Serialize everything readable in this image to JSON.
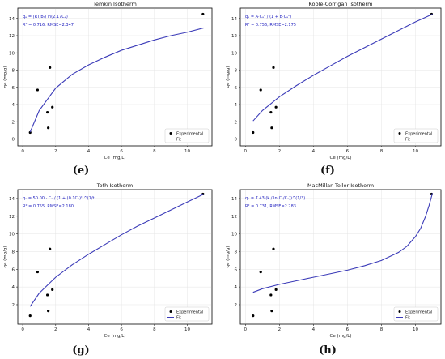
{
  "figure": {
    "background": "#ffffff",
    "fit_color": "#3b3bb8",
    "point_color": "#000000"
  },
  "chart_data": [
    {
      "type": "scatter",
      "panel": "(e)",
      "title": "Temkin Isotherm",
      "equation_line1": "qₑ = (RT/bₜ) ln(2.17Cₑ)",
      "equation_line2": "R² = 0.716, RMSE=2.347",
      "xlabel": "Ce (mg/L)",
      "ylabel": "qe (mg/g)",
      "xlim": [
        -0.3,
        11.5
      ],
      "ylim": [
        -0.8,
        15.2
      ],
      "xticks": [
        0,
        2,
        4,
        6,
        8,
        10
      ],
      "yticks": [
        0,
        2,
        4,
        6,
        8,
        10,
        12,
        14
      ],
      "grid": true,
      "legend": {
        "placement": "bottom-right",
        "entries": [
          "Experimental",
          "Fit"
        ]
      },
      "series": [
        {
          "name": "Experimental",
          "kind": "points",
          "x": [
            0.45,
            0.9,
            1.5,
            1.55,
            1.65,
            1.8,
            10.95
          ],
          "y": [
            0.75,
            5.7,
            3.1,
            1.3,
            8.3,
            3.7,
            14.5
          ]
        },
        {
          "name": "Fit",
          "kind": "line",
          "x": [
            0.45,
            1,
            2,
            3,
            4,
            5,
            6,
            7,
            8,
            9,
            10,
            11
          ],
          "y": [
            0.8,
            3.3,
            5.9,
            7.5,
            8.6,
            9.5,
            10.3,
            10.9,
            11.5,
            12.0,
            12.4,
            12.9
          ]
        }
      ]
    },
    {
      "type": "scatter",
      "panel": "(f)",
      "title": "Koble-Corrigan Isotherm",
      "equation_line1": "qₑ = A·Cₑⁿ / (1 + B·Cₑⁿ)",
      "equation_line2": "R² = 0.756, RMSE=2.175",
      "xlabel": "Ce (mg/L)",
      "ylabel": "qe (mg/g)",
      "xlim": [
        -0.3,
        11.5
      ],
      "ylim": [
        -0.8,
        15.2
      ],
      "xticks": [
        0,
        2,
        4,
        6,
        8,
        10
      ],
      "yticks": [
        0,
        2,
        4,
        6,
        8,
        10,
        12,
        14
      ],
      "grid": true,
      "legend": {
        "placement": "bottom-right",
        "entries": [
          "Experimental",
          "Fit"
        ]
      },
      "series": [
        {
          "name": "Experimental",
          "kind": "points",
          "x": [
            0.45,
            0.9,
            1.5,
            1.55,
            1.65,
            1.8,
            10.95
          ],
          "y": [
            0.75,
            5.7,
            3.1,
            1.3,
            8.3,
            3.7,
            14.5
          ]
        },
        {
          "name": "Fit",
          "kind": "line",
          "x": [
            0.45,
            1,
            2,
            3,
            4,
            5,
            6,
            7,
            8,
            9,
            10,
            11
          ],
          "y": [
            2.1,
            3.3,
            4.9,
            6.2,
            7.4,
            8.5,
            9.6,
            10.6,
            11.6,
            12.6,
            13.6,
            14.5
          ]
        }
      ]
    },
    {
      "type": "scatter",
      "panel": "(g)",
      "title": "Toth Isotherm",
      "equation_line1": "qₑ = 50.00 · Cₑ / (1 + (0.1Cₑ)ᵗ)^(1/t)",
      "equation_line2": "R² = 0.755, RMSE=2.180",
      "xlabel": "Ce (mg/L)",
      "ylabel": "qe (mg/g)",
      "xlim": [
        -0.3,
        11.5
      ],
      "ylim": [
        -0.2,
        15.0
      ],
      "xticks": [
        0,
        2,
        4,
        6,
        8,
        10
      ],
      "yticks": [
        2,
        4,
        6,
        8,
        10,
        12,
        14
      ],
      "grid": true,
      "legend": {
        "placement": "bottom-right",
        "entries": [
          "Experimental",
          "Fit"
        ]
      },
      "series": [
        {
          "name": "Experimental",
          "kind": "points",
          "x": [
            0.45,
            0.9,
            1.5,
            1.55,
            1.65,
            1.8,
            10.95
          ],
          "y": [
            0.75,
            5.7,
            3.1,
            1.3,
            8.3,
            3.7,
            14.5
          ]
        },
        {
          "name": "Fit",
          "kind": "line",
          "x": [
            0.45,
            1,
            2,
            3,
            4,
            5,
            6,
            7,
            8,
            9,
            10,
            11
          ],
          "y": [
            1.8,
            3.3,
            5.1,
            6.5,
            7.7,
            8.8,
            9.9,
            10.9,
            11.8,
            12.7,
            13.6,
            14.5
          ]
        }
      ]
    },
    {
      "type": "scatter",
      "panel": "(h)",
      "title": "MacMillan-Teller Isotherm",
      "equation_line1": "qₑ = 7.43 (k / ln(Cₛ/Cₑ))^(1/3)",
      "equation_line2": "R² = 0.731, RMSE=2.283",
      "xlabel": "Ce (mg/L)",
      "ylabel": "qe (mg/g)",
      "xlim": [
        -0.3,
        11.5
      ],
      "ylim": [
        -0.2,
        15.0
      ],
      "xticks": [
        0,
        2,
        4,
        6,
        8,
        10
      ],
      "yticks": [
        2,
        4,
        6,
        8,
        10,
        12,
        14
      ],
      "grid": true,
      "legend": {
        "placement": "bottom-right",
        "entries": [
          "Experimental",
          "Fit"
        ]
      },
      "series": [
        {
          "name": "Experimental",
          "kind": "points",
          "x": [
            0.45,
            0.9,
            1.5,
            1.55,
            1.65,
            1.8,
            10.95
          ],
          "y": [
            0.75,
            5.7,
            3.1,
            1.3,
            8.3,
            3.7,
            14.5
          ]
        },
        {
          "name": "Fit",
          "kind": "line",
          "x": [
            0.45,
            1,
            2,
            3,
            4,
            5,
            6,
            7,
            8,
            9,
            9.5,
            10,
            10.3,
            10.6,
            10.8,
            11
          ],
          "y": [
            3.4,
            3.8,
            4.3,
            4.7,
            5.1,
            5.5,
            5.9,
            6.4,
            7.0,
            7.9,
            8.6,
            9.7,
            10.6,
            12.0,
            13.2,
            14.6
          ]
        }
      ]
    }
  ]
}
